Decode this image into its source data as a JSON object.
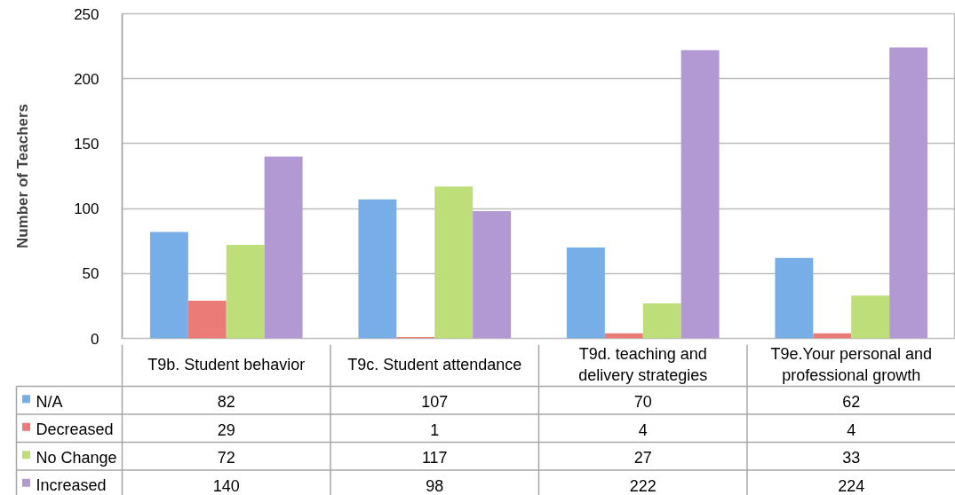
{
  "chart_data": {
    "type": "bar",
    "ylabel": "Number of Teachers",
    "categories": [
      "T9b. Student behavior",
      "T9c. Student attendance",
      "T9d. teaching and delivery strategies",
      "T9e.Your personal and professional growth"
    ],
    "series": [
      {
        "name": "N/A",
        "color": "#78aee8",
        "values": [
          82,
          107,
          70,
          62
        ]
      },
      {
        "name": "Decreased",
        "color": "#eb7b76",
        "values": [
          29,
          1,
          4,
          4
        ]
      },
      {
        "name": "No Change",
        "color": "#bede7a",
        "values": [
          72,
          117,
          27,
          33
        ]
      },
      {
        "name": "Increased",
        "color": "#b299d4",
        "values": [
          140,
          98,
          222,
          224
        ]
      }
    ],
    "ylim": [
      0,
      250
    ],
    "yticks": [
      0,
      50,
      100,
      150,
      200,
      250
    ],
    "grid": "y",
    "legend": "bottom",
    "data_labels": true
  }
}
